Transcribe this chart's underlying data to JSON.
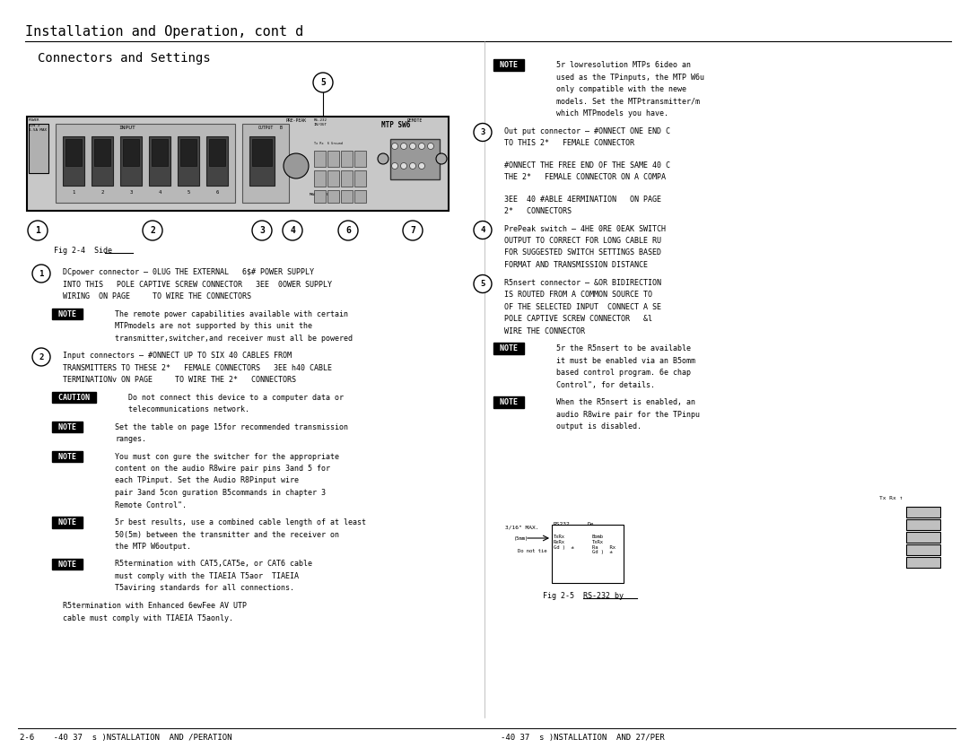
{
  "title": "Installation and Operation, cont d",
  "subtitle": "Connectors and Settings",
  "bg_color": "#ffffff",
  "text_color": "#000000",
  "title_fontsize": 11,
  "subtitle_fontsize": 10,
  "body_fontsize": 6.0,
  "note_bg": "#000000",
  "note_text": "#ffffff",
  "page_footer_left": "2-6    -40 37  s )NSTALLATION  AND /PERATION",
  "page_footer_right": "-40 37  s )NSTALLATION  AND 27/PER",
  "fig4_caption": "Fig 2-4  Side",
  "fig5_caption": "Fig 2-5  RS-232 by"
}
